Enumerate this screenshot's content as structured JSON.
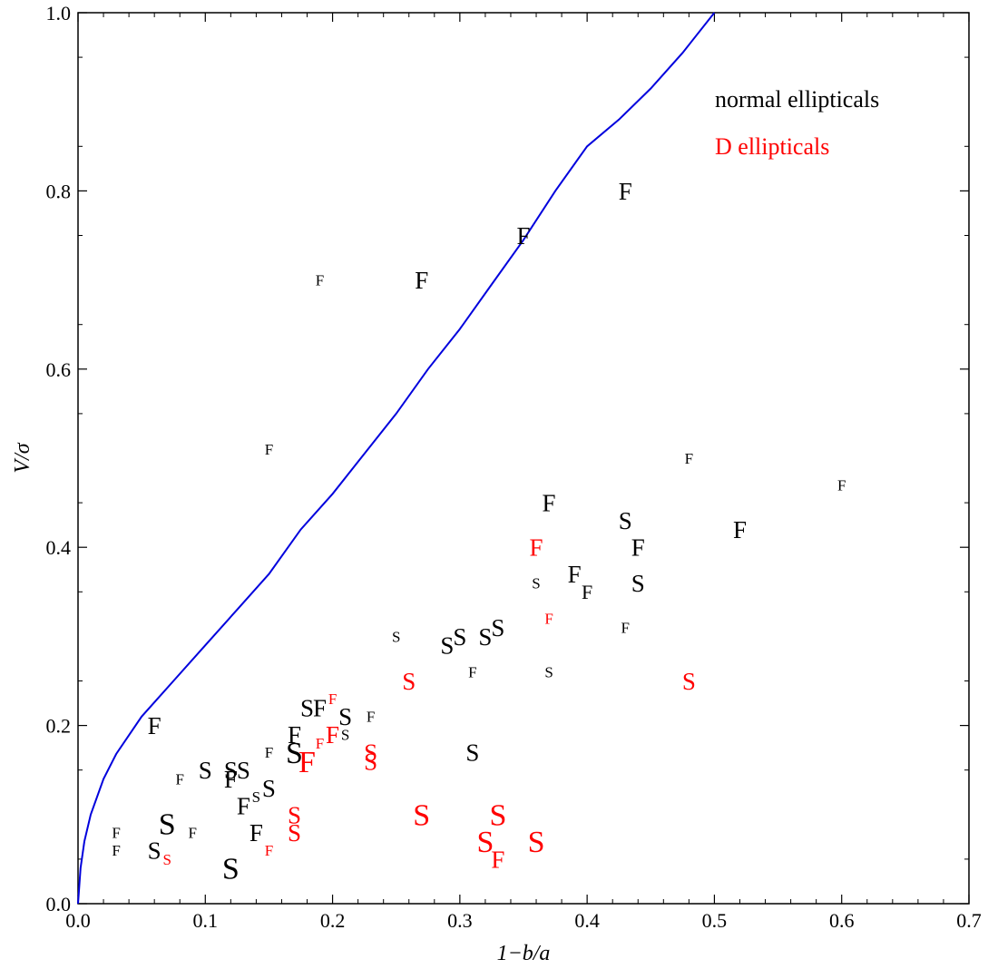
{
  "chart_data": {
    "type": "scatter",
    "xlabel": "1−b/a",
    "ylabel": "V/σ",
    "xlim": [
      0.0,
      0.7
    ],
    "ylim": [
      0.0,
      1.0
    ],
    "x_ticks": [
      "0.0",
      "0.1",
      "0.2",
      "0.3",
      "0.4",
      "0.5",
      "0.6",
      "0.7"
    ],
    "y_ticks": [
      "0.0",
      "0.2",
      "0.4",
      "0.6",
      "0.8",
      "1.0"
    ],
    "grid": false,
    "legend": {
      "placement": "top-right",
      "entries": [
        {
          "label": "normal ellipticals",
          "color": "#000000"
        },
        {
          "label": "D ellipticals",
          "color": "#ff0000"
        }
      ]
    },
    "curve": {
      "color": "#0000dd",
      "points": [
        [
          0.0,
          0.0
        ],
        [
          0.002,
          0.04
        ],
        [
          0.005,
          0.07
        ],
        [
          0.01,
          0.1
        ],
        [
          0.02,
          0.14
        ],
        [
          0.03,
          0.168
        ],
        [
          0.05,
          0.21
        ],
        [
          0.075,
          0.25
        ],
        [
          0.1,
          0.29
        ],
        [
          0.125,
          0.33
        ],
        [
          0.15,
          0.37
        ],
        [
          0.175,
          0.42
        ],
        [
          0.2,
          0.46
        ],
        [
          0.225,
          0.505
        ],
        [
          0.25,
          0.55
        ],
        [
          0.275,
          0.6
        ],
        [
          0.3,
          0.645
        ],
        [
          0.325,
          0.695
        ],
        [
          0.35,
          0.745
        ],
        [
          0.375,
          0.8
        ],
        [
          0.4,
          0.85
        ],
        [
          0.425,
          0.88
        ],
        [
          0.45,
          0.915
        ],
        [
          0.475,
          0.955
        ],
        [
          0.5,
          1.0
        ]
      ]
    },
    "series": [
      {
        "name": "normal ellipticals",
        "color": "#000000",
        "points": [
          {
            "x": 0.43,
            "y": 0.8,
            "label": "F",
            "size": "l"
          },
          {
            "x": 0.35,
            "y": 0.75,
            "label": "F",
            "size": "l"
          },
          {
            "x": 0.27,
            "y": 0.7,
            "label": "F",
            "size": "l"
          },
          {
            "x": 0.19,
            "y": 0.7,
            "label": "F",
            "size": "s"
          },
          {
            "x": 0.15,
            "y": 0.51,
            "label": "F",
            "size": "s"
          },
          {
            "x": 0.48,
            "y": 0.5,
            "label": "F",
            "size": "s"
          },
          {
            "x": 0.6,
            "y": 0.47,
            "label": "F",
            "size": "s"
          },
          {
            "x": 0.37,
            "y": 0.45,
            "label": "F",
            "size": "l"
          },
          {
            "x": 0.43,
            "y": 0.43,
            "label": "S",
            "size": "l"
          },
          {
            "x": 0.52,
            "y": 0.42,
            "label": "F",
            "size": "l"
          },
          {
            "x": 0.44,
            "y": 0.4,
            "label": "F",
            "size": "l"
          },
          {
            "x": 0.36,
            "y": 0.36,
            "label": "S",
            "size": "s"
          },
          {
            "x": 0.39,
            "y": 0.37,
            "label": "F",
            "size": "l"
          },
          {
            "x": 0.4,
            "y": 0.35,
            "label": "F",
            "size": "m"
          },
          {
            "x": 0.44,
            "y": 0.36,
            "label": "S",
            "size": "l"
          },
          {
            "x": 0.43,
            "y": 0.31,
            "label": "F",
            "size": "s"
          },
          {
            "x": 0.25,
            "y": 0.3,
            "label": "S",
            "size": "s"
          },
          {
            "x": 0.29,
            "y": 0.29,
            "label": "S",
            "size": "l"
          },
          {
            "x": 0.3,
            "y": 0.3,
            "label": "S",
            "size": "l"
          },
          {
            "x": 0.32,
            "y": 0.3,
            "label": "S",
            "size": "l"
          },
          {
            "x": 0.33,
            "y": 0.31,
            "label": "S",
            "size": "l"
          },
          {
            "x": 0.31,
            "y": 0.26,
            "label": "F",
            "size": "s"
          },
          {
            "x": 0.37,
            "y": 0.26,
            "label": "S",
            "size": "s"
          },
          {
            "x": 0.31,
            "y": 0.17,
            "label": "S",
            "size": "l"
          },
          {
            "x": 0.06,
            "y": 0.2,
            "label": "F",
            "size": "l"
          },
          {
            "x": 0.18,
            "y": 0.22,
            "label": "S",
            "size": "l"
          },
          {
            "x": 0.19,
            "y": 0.22,
            "label": "F",
            "size": "l"
          },
          {
            "x": 0.21,
            "y": 0.21,
            "label": "S",
            "size": "l"
          },
          {
            "x": 0.21,
            "y": 0.19,
            "label": "S",
            "size": "s"
          },
          {
            "x": 0.23,
            "y": 0.21,
            "label": "F",
            "size": "s"
          },
          {
            "x": 0.17,
            "y": 0.19,
            "label": "F",
            "size": "l"
          },
          {
            "x": 0.17,
            "y": 0.17,
            "label": "S",
            "size": "xl"
          },
          {
            "x": 0.15,
            "y": 0.17,
            "label": "F",
            "size": "s"
          },
          {
            "x": 0.1,
            "y": 0.15,
            "label": "S",
            "size": "l"
          },
          {
            "x": 0.12,
            "y": 0.15,
            "label": "S",
            "size": "l"
          },
          {
            "x": 0.12,
            "y": 0.14,
            "label": "F",
            "size": "l"
          },
          {
            "x": 0.13,
            "y": 0.15,
            "label": "S",
            "size": "l"
          },
          {
            "x": 0.08,
            "y": 0.14,
            "label": "F",
            "size": "s"
          },
          {
            "x": 0.15,
            "y": 0.13,
            "label": "S",
            "size": "l"
          },
          {
            "x": 0.14,
            "y": 0.12,
            "label": "S",
            "size": "s"
          },
          {
            "x": 0.13,
            "y": 0.11,
            "label": "F",
            "size": "l"
          },
          {
            "x": 0.07,
            "y": 0.09,
            "label": "S",
            "size": "xl"
          },
          {
            "x": 0.14,
            "y": 0.08,
            "label": "F",
            "size": "l"
          },
          {
            "x": 0.09,
            "y": 0.08,
            "label": "F",
            "size": "s"
          },
          {
            "x": 0.03,
            "y": 0.08,
            "label": "F",
            "size": "s"
          },
          {
            "x": 0.03,
            "y": 0.06,
            "label": "F",
            "size": "s"
          },
          {
            "x": 0.06,
            "y": 0.06,
            "label": "S",
            "size": "l"
          },
          {
            "x": 0.12,
            "y": 0.04,
            "label": "S",
            "size": "xl"
          }
        ]
      },
      {
        "name": "D ellipticals",
        "color": "#ff0000",
        "points": [
          {
            "x": 0.36,
            "y": 0.4,
            "label": "F",
            "size": "l"
          },
          {
            "x": 0.37,
            "y": 0.32,
            "label": "F",
            "size": "s"
          },
          {
            "x": 0.26,
            "y": 0.25,
            "label": "S",
            "size": "l"
          },
          {
            "x": 0.48,
            "y": 0.25,
            "label": "S",
            "size": "l"
          },
          {
            "x": 0.2,
            "y": 0.23,
            "label": "F",
            "size": "s"
          },
          {
            "x": 0.2,
            "y": 0.19,
            "label": "F",
            "size": "l"
          },
          {
            "x": 0.19,
            "y": 0.18,
            "label": "F",
            "size": "s"
          },
          {
            "x": 0.18,
            "y": 0.16,
            "label": "F",
            "size": "xl"
          },
          {
            "x": 0.23,
            "y": 0.17,
            "label": "S",
            "size": "l"
          },
          {
            "x": 0.23,
            "y": 0.16,
            "label": "S",
            "size": "l"
          },
          {
            "x": 0.17,
            "y": 0.1,
            "label": "S",
            "size": "l"
          },
          {
            "x": 0.17,
            "y": 0.08,
            "label": "S",
            "size": "l"
          },
          {
            "x": 0.27,
            "y": 0.1,
            "label": "S",
            "size": "xl"
          },
          {
            "x": 0.33,
            "y": 0.1,
            "label": "S",
            "size": "xl"
          },
          {
            "x": 0.32,
            "y": 0.07,
            "label": "S",
            "size": "xl"
          },
          {
            "x": 0.36,
            "y": 0.07,
            "label": "S",
            "size": "xl"
          },
          {
            "x": 0.33,
            "y": 0.05,
            "label": "F",
            "size": "l"
          },
          {
            "x": 0.15,
            "y": 0.06,
            "label": "F",
            "size": "s"
          },
          {
            "x": 0.07,
            "y": 0.05,
            "label": "S",
            "size": "s"
          }
        ]
      }
    ]
  }
}
